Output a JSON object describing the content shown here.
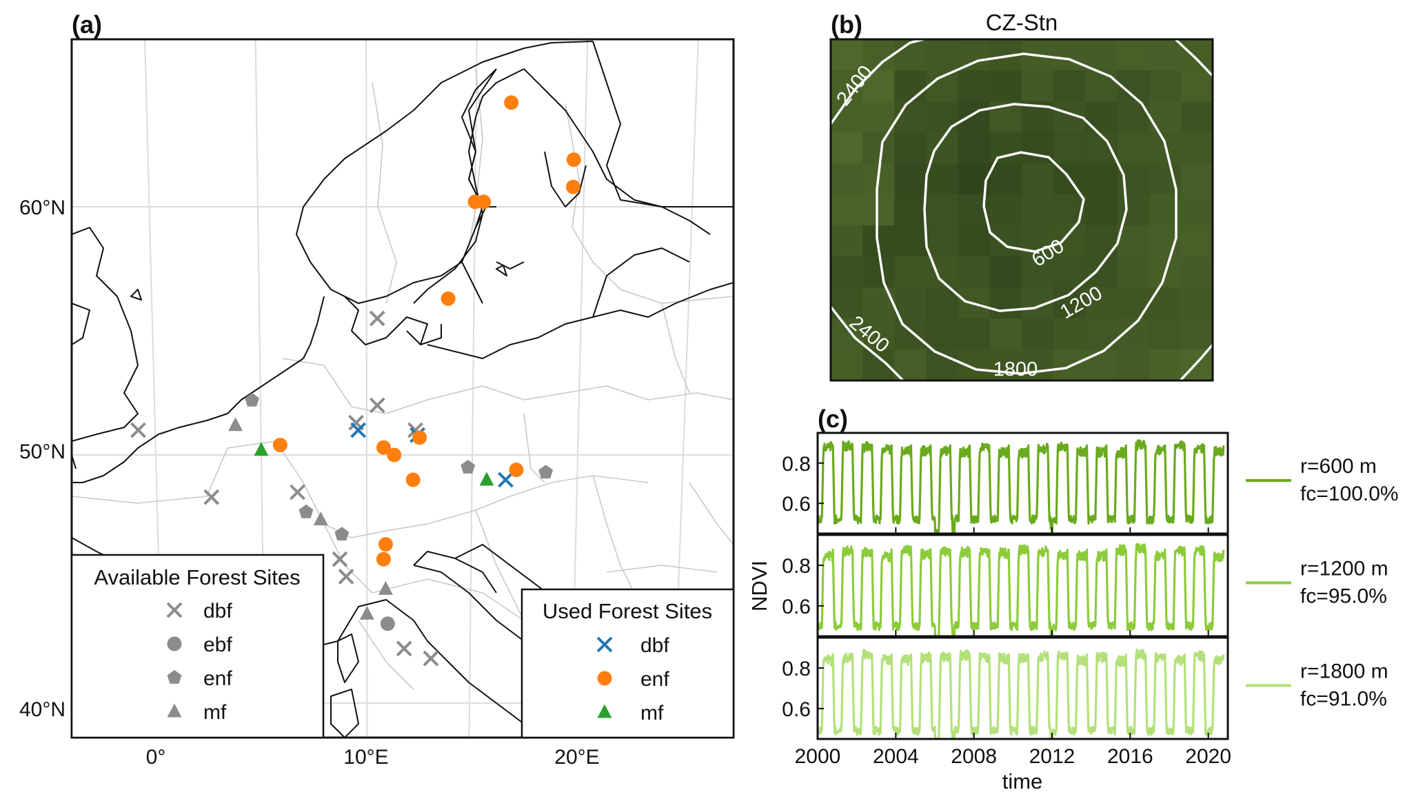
{
  "panels": {
    "a": {
      "label": "(a)",
      "lat_ticks": [
        "40°N",
        "50°N",
        "60°N"
      ],
      "lon_ticks": [
        "0°",
        "10°E",
        "20°E"
      ],
      "legend_available": {
        "title": "Available Forest Sites",
        "entries": [
          {
            "label": "dbf",
            "marker": "x"
          },
          {
            "label": "ebf",
            "marker": "circle"
          },
          {
            "label": "enf",
            "marker": "pentagon"
          },
          {
            "label": "mf",
            "marker": "triangle"
          }
        ],
        "color": "#8c8c8c"
      },
      "legend_used": {
        "title": "Used Forest Sites",
        "entries": [
          {
            "label": "dbf",
            "marker": "x",
            "color": "#1f77b4"
          },
          {
            "label": "enf",
            "marker": "circle",
            "color": "#ff7f0e"
          },
          {
            "label": "mf",
            "marker": "triangle",
            "color": "#2ca02c"
          }
        ]
      },
      "colors": {
        "coast": "#111111",
        "border": "#c9c9c9",
        "grid": "#dddddd"
      }
    },
    "b": {
      "label": "(b)",
      "title": "CZ-Stn",
      "contour_labels": [
        "600",
        "1200",
        "1800",
        "2400",
        "2400"
      ],
      "colors": {
        "contour": "#ffffff",
        "forest_dark": "#1f3512",
        "forest_light": "#4a6a2e"
      }
    },
    "c": {
      "label": "(c)",
      "ylabel": "NDVI",
      "xlabel": "time",
      "y_ticks": [
        "0.6",
        "0.8"
      ],
      "x_ticks": [
        "2000",
        "2004",
        "2008",
        "2012",
        "2016",
        "2020"
      ],
      "series": [
        {
          "radius_label": "r=600 m",
          "fc_label": "fc=100.0%",
          "color": "#6aaa1e"
        },
        {
          "radius_label": "r=1200 m",
          "fc_label": "fc=95.0%",
          "color": "#8ccc3a"
        },
        {
          "radius_label": "r=1800 m",
          "fc_label": "fc=91.0%",
          "color": "#b4e07a"
        }
      ]
    }
  },
  "chart_data": [
    {
      "type": "scatter",
      "panel": "a",
      "xlabel": "",
      "ylabel": "",
      "xlim": [
        -4,
        27
      ],
      "ylim": [
        39,
        66
      ],
      "series": [
        {
          "name": "dbf",
          "group": "Available Forest Sites",
          "marker": "x",
          "color": "#8c8c8c",
          "points": [
            [
              -0.8,
              51.0
            ],
            [
              2.6,
              48.3
            ],
            [
              6.7,
              48.5
            ],
            [
              9.5,
              51.3
            ],
            [
              10.5,
              52.0
            ],
            [
              10.5,
              55.5
            ],
            [
              8.7,
              45.8
            ],
            [
              9.0,
              45.1
            ],
            [
              11.8,
              42.2
            ],
            [
              13.1,
              41.8
            ],
            [
              12.3,
              51.0
            ]
          ]
        },
        {
          "name": "ebf",
          "group": "Available Forest Sites",
          "marker": "circle",
          "color": "#8c8c8c",
          "points": [
            [
              11.0,
              43.2
            ]
          ]
        },
        {
          "name": "enf",
          "group": "Available Forest Sites",
          "marker": "pentagon",
          "color": "#8c8c8c",
          "points": [
            [
              4.6,
              52.2
            ],
            [
              7.1,
              47.7
            ],
            [
              8.8,
              46.8
            ],
            [
              14.8,
              49.5
            ],
            [
              18.5,
              49.3
            ]
          ]
        },
        {
          "name": "mf",
          "group": "Available Forest Sites",
          "marker": "triangle",
          "color": "#8c8c8c",
          "points": [
            [
              3.8,
              51.2
            ],
            [
              7.8,
              47.4
            ],
            [
              10.9,
              44.6
            ],
            [
              10.0,
              43.6
            ]
          ]
        },
        {
          "name": "dbf",
          "group": "Used Forest Sites",
          "marker": "x",
          "color": "#1f77b4",
          "points": [
            [
              9.6,
              51.0
            ],
            [
              12.4,
              50.8
            ],
            [
              16.6,
              49.0
            ]
          ]
        },
        {
          "name": "enf",
          "group": "Used Forest Sites",
          "marker": "circle",
          "color": "#ff7f0e",
          "points": [
            [
              16.6,
              64.2
            ],
            [
              19.5,
              61.9
            ],
            [
              19.5,
              60.8
            ],
            [
              15.0,
              60.2
            ],
            [
              15.4,
              60.2
            ],
            [
              13.8,
              56.3
            ],
            [
              5.9,
              50.4
            ],
            [
              10.8,
              50.3
            ],
            [
              11.3,
              50.0
            ],
            [
              12.5,
              50.7
            ],
            [
              12.2,
              49.0
            ],
            [
              17.1,
              49.4
            ],
            [
              10.9,
              46.4
            ],
            [
              10.8,
              45.8
            ]
          ]
        },
        {
          "name": "mf",
          "group": "Used Forest Sites",
          "marker": "triangle",
          "color": "#2ca02c",
          "points": [
            [
              5.0,
              50.2
            ],
            [
              15.7,
              49.0
            ]
          ]
        }
      ]
    },
    {
      "type": "heatmap",
      "panel": "b",
      "title": "CZ-Stn",
      "contour_levels": [
        600,
        1200,
        1800,
        2400
      ]
    },
    {
      "type": "line",
      "panel": "c",
      "xlabel": "time",
      "ylabel": "NDVI",
      "xlim": [
        2000,
        2021
      ],
      "ylim": [
        0.45,
        0.95
      ],
      "x_ticks": [
        2000,
        2004,
        2008,
        2012,
        2016,
        2020
      ],
      "y_ticks": [
        0.6,
        0.8
      ],
      "series": [
        {
          "name": "r=600 m fc=100.0%",
          "color": "#6aaa1e",
          "summer_peak": 0.9,
          "winter_min": 0.52
        },
        {
          "name": "r=1200 m fc=95.0%",
          "color": "#8ccc3a",
          "summer_peak": 0.89,
          "winter_min": 0.5
        },
        {
          "name": "r=1800 m fc=91.0%",
          "color": "#b4e07a",
          "summer_peak": 0.88,
          "winter_min": 0.49
        }
      ]
    }
  ]
}
